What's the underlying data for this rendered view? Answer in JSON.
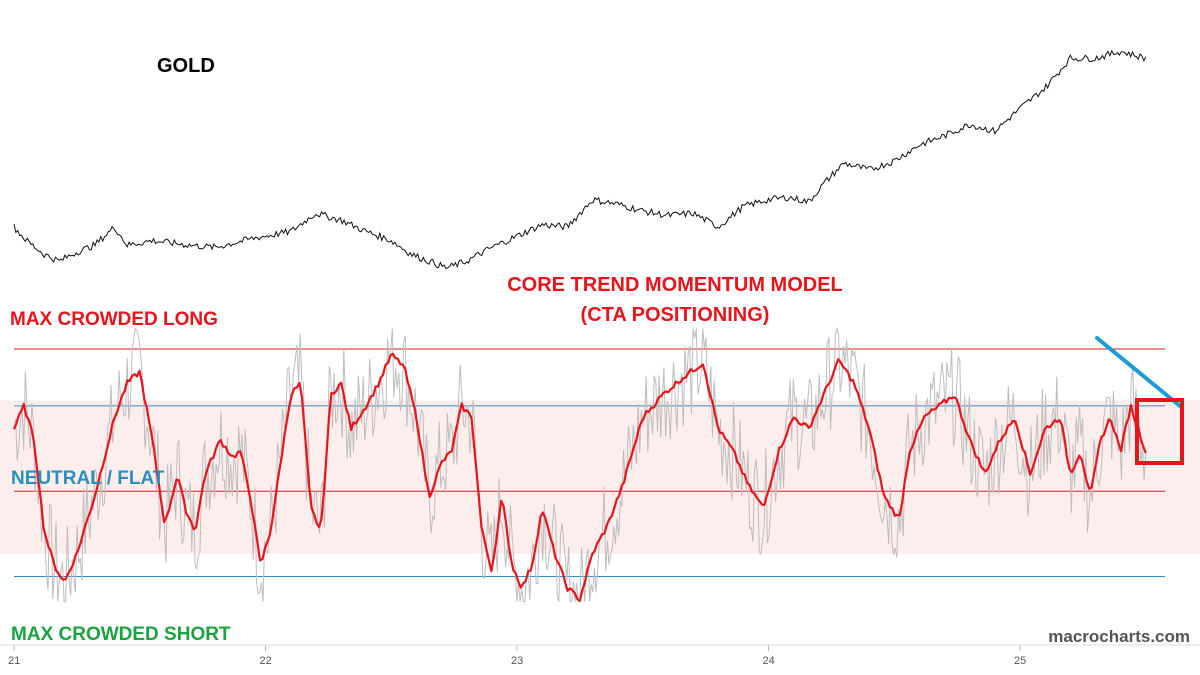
{
  "labels": {
    "asset": "GOLD",
    "model_title_line1": "CORE TREND MOMENTUM MODEL",
    "model_title_line2": "(CTA POSITIONING)",
    "max_long": "MAX CROWDED LONG",
    "neutral": "NEUTRAL / FLAT",
    "max_short": "MAX CROWDED SHORT",
    "watermark": "macrocharts.com"
  },
  "colors": {
    "price_line": "#111111",
    "model_line": "#e8141c",
    "raw_signal": "#bdbdbd",
    "threshold_red": "#d21e1e",
    "threshold_blue": "#2a8fbe",
    "neutral_band": "#fdeeee",
    "trendline": "#1e9bd7",
    "highlight_box": "#e8141c",
    "max_long_text": "#e8141c",
    "neutral_text": "#2a8fbe",
    "max_short_text": "#1aa340"
  },
  "chart_data": [
    {
      "type": "line",
      "title": "GOLD",
      "x_axis": {
        "ticks": [
          "21",
          "22",
          "23",
          "24",
          "25"
        ],
        "range": [
          21.0,
          25.6
        ]
      },
      "series": [
        {
          "name": "GOLD",
          "points": [
            [
              21.0,
              0.18
            ],
            [
              21.05,
              0.12
            ],
            [
              21.12,
              0.06
            ],
            [
              21.18,
              0.03
            ],
            [
              21.25,
              0.07
            ],
            [
              21.32,
              0.1
            ],
            [
              21.4,
              0.18
            ],
            [
              21.45,
              0.1
            ],
            [
              21.55,
              0.12
            ],
            [
              21.7,
              0.1
            ],
            [
              21.8,
              0.09
            ],
            [
              21.95,
              0.13
            ],
            [
              22.1,
              0.16
            ],
            [
              22.2,
              0.24
            ],
            [
              22.3,
              0.21
            ],
            [
              22.4,
              0.16
            ],
            [
              22.5,
              0.12
            ],
            [
              22.58,
              0.06
            ],
            [
              22.65,
              0.03
            ],
            [
              22.72,
              0.0
            ],
            [
              22.8,
              0.03
            ],
            [
              22.9,
              0.09
            ],
            [
              23.0,
              0.14
            ],
            [
              23.1,
              0.19
            ],
            [
              23.2,
              0.18
            ],
            [
              23.3,
              0.3
            ],
            [
              23.4,
              0.28
            ],
            [
              23.5,
              0.25
            ],
            [
              23.6,
              0.23
            ],
            [
              23.7,
              0.24
            ],
            [
              23.8,
              0.18
            ],
            [
              23.9,
              0.27
            ],
            [
              24.0,
              0.3
            ],
            [
              24.08,
              0.31
            ],
            [
              24.16,
              0.29
            ],
            [
              24.22,
              0.37
            ],
            [
              24.3,
              0.46
            ],
            [
              24.4,
              0.43
            ],
            [
              24.5,
              0.47
            ],
            [
              24.6,
              0.54
            ],
            [
              24.7,
              0.58
            ],
            [
              24.8,
              0.63
            ],
            [
              24.9,
              0.6
            ],
            [
              25.0,
              0.7
            ],
            [
              25.1,
              0.79
            ],
            [
              25.2,
              0.92
            ],
            [
              25.3,
              0.92
            ],
            [
              25.4,
              0.95
            ],
            [
              25.5,
              0.92
            ]
          ]
        }
      ]
    },
    {
      "type": "line",
      "title": "CORE TREND MOMENTUM MODEL (CTA POSITIONING)",
      "x_axis": {
        "ticks": [
          "21",
          "22",
          "23",
          "24",
          "25"
        ],
        "range": [
          21.0,
          25.6
        ]
      },
      "y_axis": {
        "range": [
          -1.25,
          1.0
        ]
      },
      "levels": [
        {
          "name": "MAX CROWDED LONG",
          "value": 1.0
        },
        {
          "name": "upper",
          "value": 0.5
        },
        {
          "name": "lower",
          "value": -0.25
        },
        {
          "name": "MAX CROWDED SHORT",
          "value": -1.0
        }
      ],
      "neutral_band": [
        -0.8,
        0.55
      ],
      "series": [
        {
          "name": "model",
          "points": [
            [
              21.0,
              0.3
            ],
            [
              21.04,
              0.5
            ],
            [
              21.08,
              0.2
            ],
            [
              21.12,
              -0.6
            ],
            [
              21.16,
              -0.9
            ],
            [
              21.2,
              -1.05
            ],
            [
              21.25,
              -0.8
            ],
            [
              21.32,
              -0.3
            ],
            [
              21.4,
              0.4
            ],
            [
              21.45,
              0.7
            ],
            [
              21.5,
              0.8
            ],
            [
              21.55,
              0.2
            ],
            [
              21.6,
              -0.55
            ],
            [
              21.65,
              -0.1
            ],
            [
              21.68,
              -0.4
            ],
            [
              21.72,
              -0.6
            ],
            [
              21.76,
              -0.1
            ],
            [
              21.82,
              0.2
            ],
            [
              21.87,
              0.05
            ],
            [
              21.9,
              0.1
            ],
            [
              21.94,
              -0.3
            ],
            [
              21.98,
              -0.9
            ],
            [
              22.02,
              -0.6
            ],
            [
              22.06,
              0.0
            ],
            [
              22.1,
              0.6
            ],
            [
              22.14,
              0.7
            ],
            [
              22.18,
              -0.4
            ],
            [
              22.22,
              -0.6
            ],
            [
              22.26,
              0.6
            ],
            [
              22.3,
              0.7
            ],
            [
              22.34,
              0.3
            ],
            [
              22.4,
              0.5
            ],
            [
              22.45,
              0.7
            ],
            [
              22.5,
              0.95
            ],
            [
              22.55,
              0.85
            ],
            [
              22.6,
              0.4
            ],
            [
              22.65,
              -0.3
            ],
            [
              22.7,
              0.0
            ],
            [
              22.74,
              0.1
            ],
            [
              22.78,
              0.5
            ],
            [
              22.82,
              0.4
            ],
            [
              22.86,
              -0.6
            ],
            [
              22.9,
              -0.95
            ],
            [
              22.94,
              -0.3
            ],
            [
              22.98,
              -0.9
            ],
            [
              23.02,
              -1.1
            ],
            [
              23.06,
              -0.9
            ],
            [
              23.1,
              -0.4
            ],
            [
              23.15,
              -0.8
            ],
            [
              23.2,
              -1.1
            ],
            [
              23.25,
              -1.2
            ],
            [
              23.3,
              -0.8
            ],
            [
              23.36,
              -0.55
            ],
            [
              23.42,
              -0.2
            ],
            [
              23.5,
              0.4
            ],
            [
              23.58,
              0.6
            ],
            [
              23.66,
              0.75
            ],
            [
              23.74,
              0.88
            ],
            [
              23.8,
              0.3
            ],
            [
              23.86,
              0.1
            ],
            [
              23.92,
              -0.2
            ],
            [
              23.98,
              -0.4
            ],
            [
              24.04,
              0.1
            ],
            [
              24.1,
              0.4
            ],
            [
              24.16,
              0.3
            ],
            [
              24.22,
              0.6
            ],
            [
              24.28,
              0.9
            ],
            [
              24.34,
              0.7
            ],
            [
              24.4,
              0.3
            ],
            [
              24.46,
              -0.3
            ],
            [
              24.52,
              -0.5
            ],
            [
              24.56,
              0.1
            ],
            [
              24.62,
              0.4
            ],
            [
              24.68,
              0.5
            ],
            [
              24.74,
              0.6
            ],
            [
              24.8,
              0.2
            ],
            [
              24.86,
              -0.1
            ],
            [
              24.92,
              0.2
            ],
            [
              24.98,
              0.4
            ],
            [
              25.04,
              -0.1
            ],
            [
              25.1,
              0.3
            ],
            [
              25.16,
              0.4
            ],
            [
              25.2,
              -0.1
            ],
            [
              25.24,
              0.1
            ],
            [
              25.28,
              -0.3
            ],
            [
              25.32,
              0.2
            ],
            [
              25.36,
              0.4
            ],
            [
              25.4,
              0.1
            ],
            [
              25.44,
              0.5
            ],
            [
              25.5,
              0.1
            ]
          ]
        }
      ]
    }
  ]
}
